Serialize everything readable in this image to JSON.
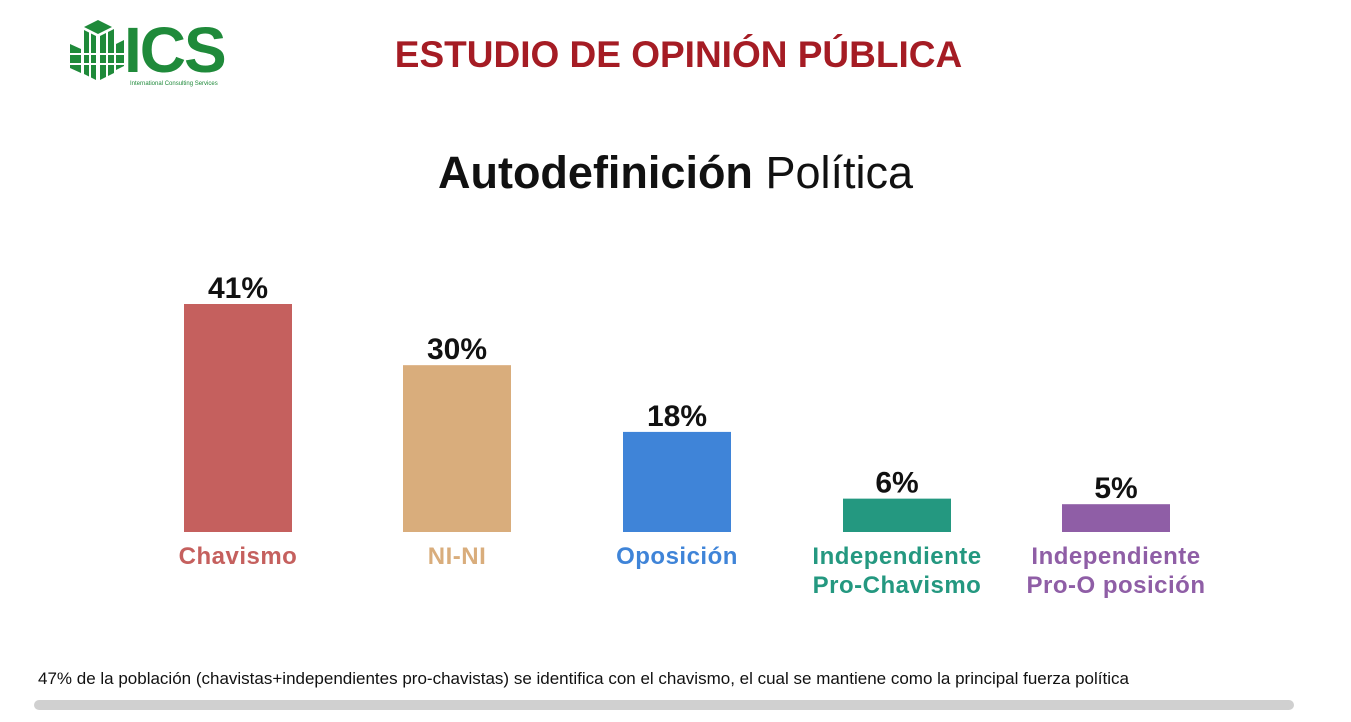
{
  "header": {
    "logo_text": "ICS",
    "logo_subtitle": "International Consulting Services",
    "title": "ESTUDIO DE OPINIÓN PÚBLICA"
  },
  "chart_title": {
    "bold": "Autodefinición",
    "regular": " Política"
  },
  "chart_data": {
    "type": "bar",
    "title": "Autodefinición Política",
    "categories": [
      [
        "Chavismo"
      ],
      [
        "NI-NI"
      ],
      [
        "Oposición"
      ],
      [
        "Independiente",
        "Pro-Chavismo"
      ],
      [
        "Independiente",
        "Pro-O posición"
      ]
    ],
    "values": [
      41,
      30,
      18,
      6,
      5
    ],
    "value_labels": [
      "41%",
      "30%",
      "18%",
      "6%",
      "5%"
    ],
    "colors": [
      "#c5605e",
      "#d9ad7c",
      "#3f84d8",
      "#249880",
      "#8f5ea6"
    ],
    "ylim": [
      0,
      41
    ],
    "grid": false,
    "legend": "none"
  },
  "footnote": "47% de la población (chavistas+independientes pro-chavistas) se identifica con el chavismo, el cual se mantiene como la principal fuerza política"
}
